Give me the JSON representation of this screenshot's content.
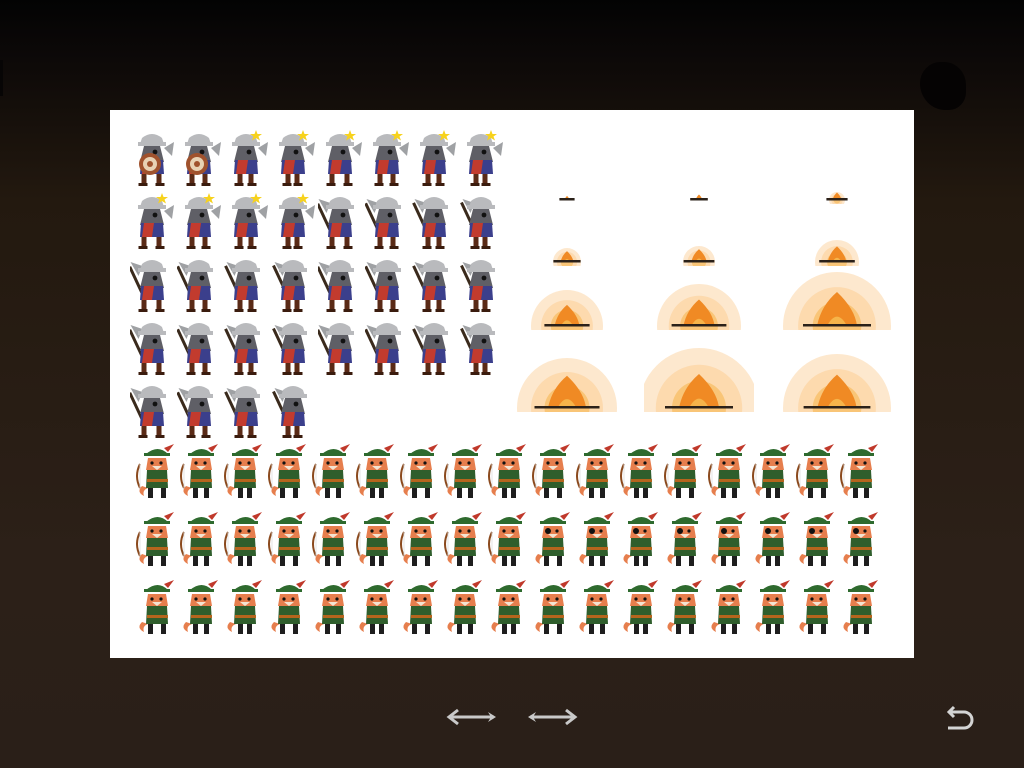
{
  "screen": {
    "background_top": "#030303",
    "background_bottom": "#2c2018",
    "sheet_background": "#ffffff"
  },
  "spritesheet": {
    "wolf_warrior": {
      "frames_total": 36,
      "rows": [
        8,
        8,
        8,
        8,
        4
      ],
      "colors": {
        "fur": "#5f5f66",
        "helmet": "#b9babd",
        "tunic": "#3b3f8c",
        "shirt": "#c23b2e",
        "boots": "#5a2a16",
        "shield": "#a0522d"
      }
    },
    "campfire": {
      "frames_total": 12,
      "rows": [
        3,
        3,
        3,
        3
      ],
      "colors": {
        "flame": "#f08a24",
        "flame_core": "#f6b44a",
        "glow": "#fcd6a6",
        "logs": "#2b2119"
      }
    },
    "fox_archer": {
      "frames_total": 51,
      "rows": [
        17,
        17,
        17
      ],
      "colors": {
        "fur": "#e67e4d",
        "hat": "#2e6a2e",
        "feather": "#c0392b",
        "tunic": "#2f5e2c",
        "belt": "#b5651d",
        "boots": "#1e1e1e"
      }
    }
  },
  "controls": {
    "prev_icon": "arrow-left-icon",
    "next_icon": "arrow-right-icon",
    "back_icon": "return-icon",
    "arrow_color": "#c9c9c9"
  }
}
